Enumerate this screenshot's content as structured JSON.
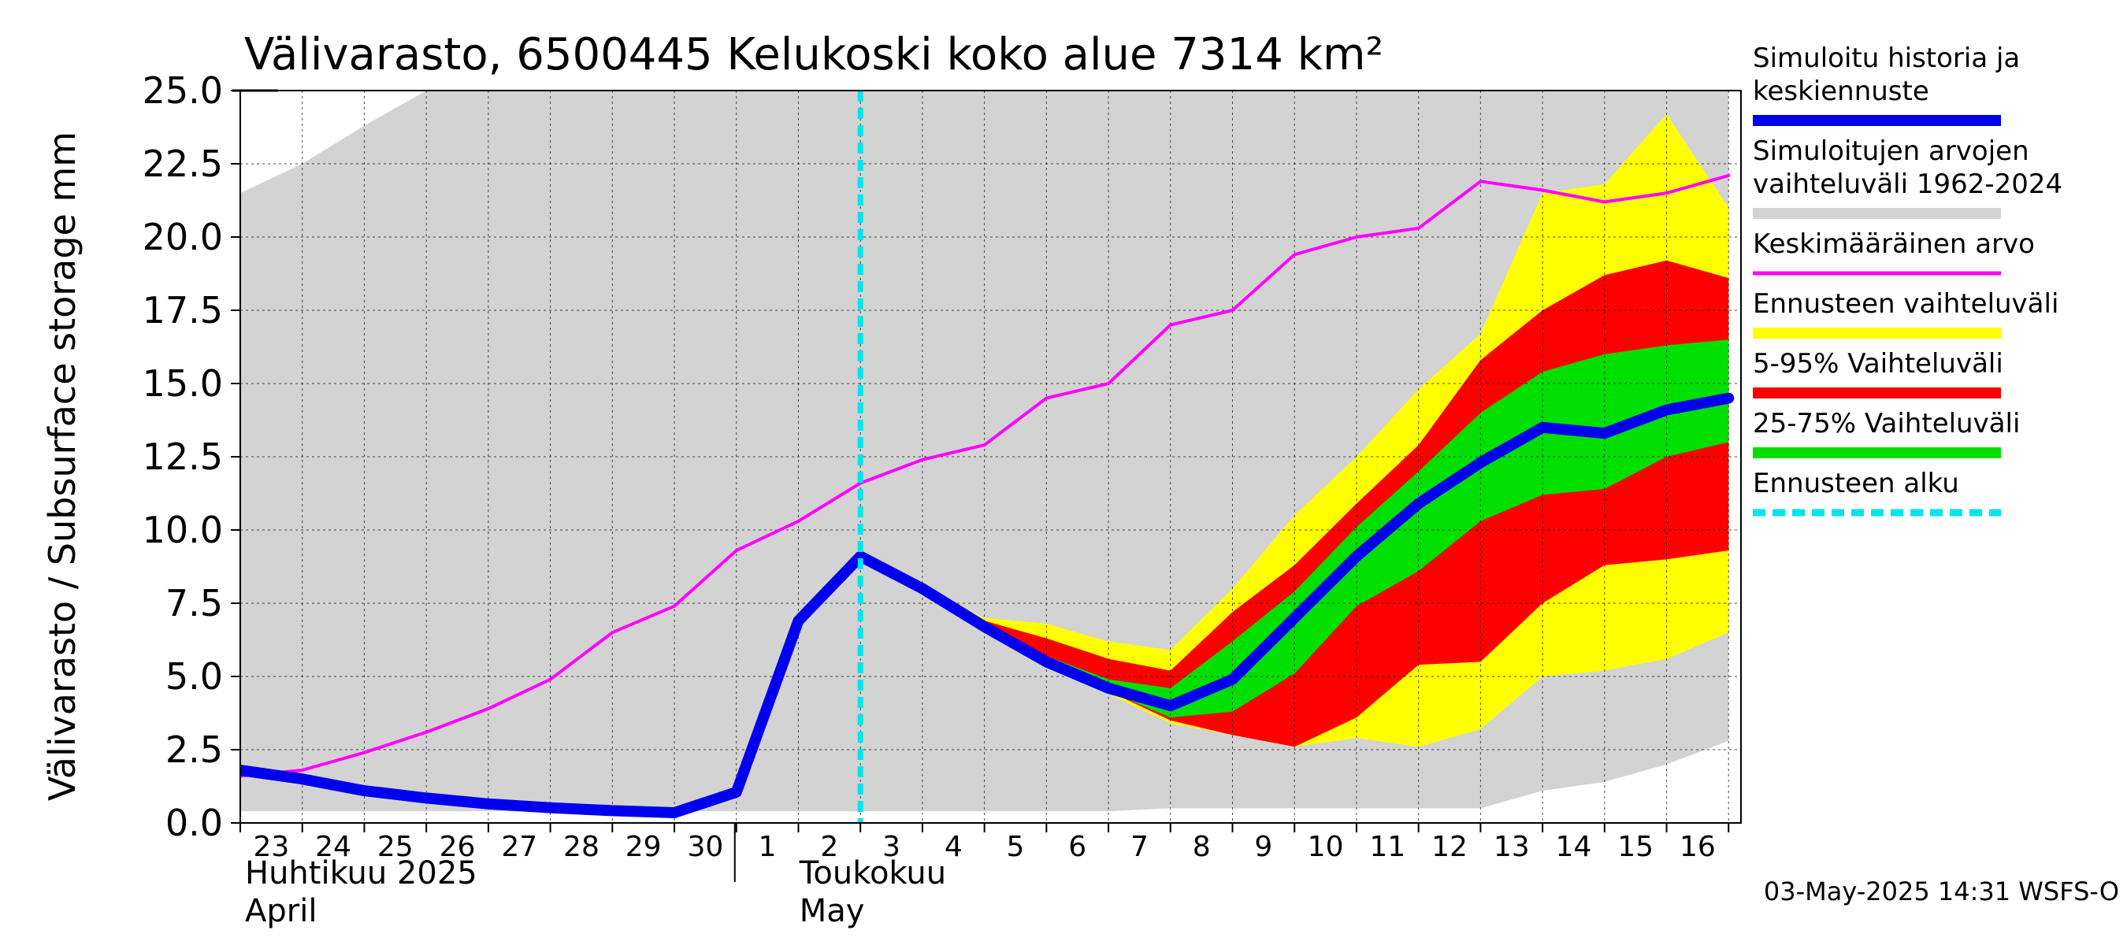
{
  "chart_data": {
    "type": "area",
    "title": "Välivarasto, 6500445 Kelukoski koko alue 7314 km²",
    "ylabel": "Välivarasto / Subsurface storage  mm",
    "ylim": [
      0,
      25
    ],
    "yticks": [
      "0.0",
      "2.5",
      "5.0",
      "7.5",
      "10.0",
      "12.5",
      "15.0",
      "17.5",
      "20.0",
      "22.5",
      "25.0"
    ],
    "x_day_labels": [
      "23",
      "24",
      "25",
      "26",
      "27",
      "28",
      "29",
      "30",
      "1",
      "2",
      "3",
      "4",
      "5",
      "6",
      "7",
      "8",
      "9",
      "10",
      "11",
      "12",
      "13",
      "14",
      "15",
      "16"
    ],
    "month_labels": [
      {
        "fi": "Huhtikuu  2025",
        "en": "April"
      },
      {
        "fi": "Toukokuu",
        "en": "May"
      }
    ],
    "x_dates": [
      "2025-04-23",
      "2025-04-24",
      "2025-04-25",
      "2025-04-26",
      "2025-04-27",
      "2025-04-28",
      "2025-04-29",
      "2025-04-30",
      "2025-05-01",
      "2025-05-02",
      "2025-05-03",
      "2025-05-04",
      "2025-05-05",
      "2025-05-06",
      "2025-05-07",
      "2025-05-08",
      "2025-05-09",
      "2025-05-10",
      "2025-05-11",
      "2025-05-12",
      "2025-05-13",
      "2025-05-14",
      "2025-05-15",
      "2025-05-16",
      "2025-05-17"
    ],
    "forecast_start": "2025-05-03",
    "series": [
      {
        "name": "Simuloitujen arvojen vaihteluväli 1962-2024",
        "kind": "band",
        "color": "#d3d3d3",
        "lower": [
          0.4,
          0.4,
          0.4,
          0.4,
          0.4,
          0.4,
          0.4,
          0.4,
          0.4,
          0.4,
          0.4,
          0.4,
          0.4,
          0.4,
          0.4,
          0.5,
          0.5,
          0.5,
          0.5,
          0.5,
          0.5,
          1.1,
          1.4,
          2.0,
          2.8
        ],
        "upper": [
          21.5,
          22.5,
          23.8,
          25.0,
          25.0,
          25.0,
          25.0,
          25.0,
          25.0,
          25.0,
          25.0,
          25.0,
          25.0,
          25.0,
          25.0,
          25.0,
          25.0,
          25.0,
          25.0,
          25.0,
          25.0,
          25.0,
          25.0,
          25.0,
          25.0
        ]
      },
      {
        "name": "Ennusteen vaihteluväli",
        "kind": "band",
        "color": "#ffff00",
        "lower": [
          null,
          null,
          null,
          null,
          null,
          null,
          null,
          null,
          null,
          null,
          9.1,
          8.0,
          6.7,
          5.5,
          4.4,
          3.4,
          3.0,
          2.6,
          2.9,
          2.6,
          3.2,
          5.0,
          5.2,
          5.6,
          6.5
        ],
        "upper": [
          null,
          null,
          null,
          null,
          null,
          null,
          null,
          null,
          null,
          null,
          9.1,
          8.0,
          7.0,
          6.8,
          6.2,
          5.9,
          8.0,
          10.5,
          12.5,
          14.8,
          16.7,
          21.5,
          21.8,
          24.2,
          21.0
        ]
      },
      {
        "name": "5-95% Vaihteluväli",
        "kind": "band",
        "color": "#ff0000",
        "lower": [
          null,
          null,
          null,
          null,
          null,
          null,
          null,
          null,
          null,
          null,
          9.1,
          8.0,
          6.7,
          5.5,
          4.5,
          3.5,
          3.0,
          2.6,
          3.6,
          5.4,
          5.5,
          7.5,
          8.8,
          9.0,
          9.3
        ],
        "upper": [
          null,
          null,
          null,
          null,
          null,
          null,
          null,
          null,
          null,
          null,
          9.1,
          8.0,
          6.9,
          6.3,
          5.6,
          5.2,
          7.2,
          8.8,
          10.9,
          12.9,
          15.8,
          17.5,
          18.7,
          19.2,
          18.6
        ]
      },
      {
        "name": "25-75% Vaihteluväli",
        "kind": "band",
        "color": "#00e000",
        "lower": [
          null,
          null,
          null,
          null,
          null,
          null,
          null,
          null,
          null,
          null,
          9.1,
          8.0,
          6.7,
          5.5,
          4.5,
          3.6,
          3.8,
          5.1,
          7.4,
          8.6,
          10.3,
          11.2,
          11.4,
          12.5,
          13.0
        ],
        "upper": [
          null,
          null,
          null,
          null,
          null,
          null,
          null,
          null,
          null,
          null,
          9.1,
          8.0,
          6.8,
          5.7,
          4.9,
          4.6,
          6.2,
          7.9,
          10.1,
          12.0,
          14.0,
          15.4,
          16.0,
          16.3,
          16.5
        ]
      },
      {
        "name": "Keskimääräinen arvo",
        "kind": "line",
        "color": "#ff00ff",
        "values": [
          1.6,
          1.8,
          2.4,
          3.1,
          3.9,
          4.9,
          6.5,
          7.4,
          9.3,
          10.3,
          11.6,
          12.4,
          12.9,
          14.5,
          15.0,
          17.0,
          17.5,
          19.4,
          20.0,
          20.3,
          21.9,
          21.6,
          21.2,
          21.5,
          22.1
        ]
      },
      {
        "name": "Simuloitu historia ja keskiennuste",
        "kind": "line",
        "color": "#0000ee",
        "values": [
          1.8,
          1.5,
          1.1,
          0.85,
          0.65,
          0.52,
          0.42,
          0.35,
          1.05,
          6.9,
          9.1,
          8.0,
          6.7,
          5.5,
          4.6,
          4.0,
          4.9,
          7.0,
          9.1,
          10.9,
          12.3,
          13.5,
          13.3,
          14.1,
          14.5
        ]
      }
    ],
    "legend": [
      {
        "label": "Simuloitu historia ja keskiennuste",
        "color": "#0000ee",
        "style": "thick"
      },
      {
        "label": "Simuloitujen arvojen vaihteluväli 1962-2024",
        "color": "#d3d3d3",
        "style": "thick"
      },
      {
        "label": "Keskimääräinen arvo",
        "color": "#ff00ff",
        "style": "thin"
      },
      {
        "label": "Ennusteen vaihteluväli",
        "color": "#ffff00",
        "style": "thick"
      },
      {
        "label": "5-95% Vaihteluväli",
        "color": "#ff0000",
        "style": "thick"
      },
      {
        "label": "25-75% Vaihteluväli",
        "color": "#00e000",
        "style": "thick"
      },
      {
        "label": "Ennusteen alku",
        "color": "#00e5ee",
        "style": "dashed"
      }
    ],
    "legend_position": "right",
    "grid": true,
    "timestamp": "03-May-2025 14:31 WSFS-O"
  }
}
